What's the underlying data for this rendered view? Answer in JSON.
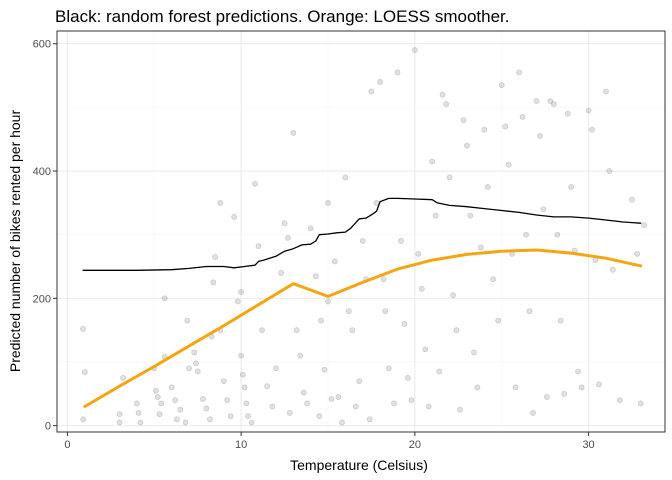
{
  "chart_data": {
    "type": "scatter",
    "title": "Black: random forest predictions. Orange: LOESS smoother.",
    "xlabel": "Temperature (Celsius)",
    "ylabel": "Predicted number of bikes rented per hour",
    "xlim": [
      -0.6,
      34.4
    ],
    "ylim": [
      -10,
      620
    ],
    "xticks": [
      0,
      10,
      20,
      30
    ],
    "yticks": [
      0,
      200,
      400,
      600
    ],
    "grid": true,
    "colors": {
      "points": "#000000",
      "rf_line": "#000000",
      "loess_line": "#f5a511",
      "panel_border": "#333333",
      "grid_major": "#ebebeb",
      "grid_minor": "#f5f5f5"
    },
    "series": [
      {
        "type": "line",
        "color": "#000000",
        "x": [
          0.9,
          4,
          6,
          7,
          8,
          9,
          9.6,
          10.2,
          10.8,
          11,
          11.3,
          12,
          12.5,
          13,
          13.5,
          14,
          14.3,
          14.5,
          15,
          15.5,
          16,
          16.3,
          16.8,
          17.2,
          17.6,
          17.8,
          18,
          18.5,
          19,
          20,
          21,
          21.3,
          22,
          23,
          24,
          25,
          26,
          27,
          28,
          29,
          30,
          31,
          32,
          33
        ],
        "y": [
          244,
          244,
          245,
          247,
          250,
          250,
          248,
          250,
          252,
          258,
          260,
          266,
          274,
          278,
          284,
          285,
          290,
          300,
          301,
          303,
          304,
          310,
          325,
          326,
          333,
          337,
          352,
          357,
          357,
          356,
          355,
          350,
          346,
          344,
          341,
          338,
          335,
          331,
          328,
          328,
          326,
          323,
          320,
          318
        ]
      },
      {
        "type": "line",
        "color": "#f5a511",
        "x": [
          1,
          3,
          5,
          7,
          9,
          11,
          13,
          15,
          17,
          19,
          21,
          23,
          25,
          27,
          29,
          31,
          33
        ],
        "y": [
          30,
          62,
          93,
          125,
          157,
          190,
          223,
          203,
          225,
          246,
          260,
          269,
          274,
          276,
          271,
          263,
          251
        ]
      }
    ],
    "points": [
      [
        0.9,
        152
      ],
      [
        1,
        84
      ],
      [
        0.9,
        10
      ],
      [
        3,
        18
      ],
      [
        3,
        5
      ],
      [
        3.2,
        75
      ],
      [
        4,
        35
      ],
      [
        4.1,
        20
      ],
      [
        4.2,
        5
      ],
      [
        5,
        90
      ],
      [
        5.1,
        55
      ],
      [
        5.2,
        45
      ],
      [
        5.4,
        35
      ],
      [
        5.3,
        18
      ],
      [
        5.6,
        108
      ],
      [
        5.6,
        200
      ],
      [
        6,
        60
      ],
      [
        6.2,
        40
      ],
      [
        6.3,
        10
      ],
      [
        6.5,
        25
      ],
      [
        6.8,
        5
      ],
      [
        6.9,
        165
      ],
      [
        7,
        90
      ],
      [
        7.3,
        115
      ],
      [
        7.4,
        98
      ],
      [
        7.5,
        85
      ],
      [
        7.8,
        42
      ],
      [
        8.0,
        27
      ],
      [
        8.2,
        10
      ],
      [
        8.3,
        140
      ],
      [
        8.4,
        225
      ],
      [
        8.5,
        265
      ],
      [
        8.8,
        350
      ],
      [
        8.8,
        150
      ],
      [
        9.0,
        70
      ],
      [
        9.2,
        40
      ],
      [
        9.4,
        15
      ],
      [
        9.6,
        328
      ],
      [
        9.8,
        195
      ],
      [
        10,
        210
      ],
      [
        10,
        110
      ],
      [
        10.1,
        80
      ],
      [
        10.2,
        60
      ],
      [
        10.3,
        35
      ],
      [
        10.4,
        15
      ],
      [
        10.6,
        5
      ],
      [
        10.8,
        380
      ],
      [
        11,
        282
      ],
      [
        11.2,
        150
      ],
      [
        11.5,
        62
      ],
      [
        11.8,
        30
      ],
      [
        12,
        90
      ],
      [
        12.3,
        240
      ],
      [
        12.5,
        318
      ],
      [
        12.7,
        295
      ],
      [
        12.8,
        20
      ],
      [
        13,
        460
      ],
      [
        13.2,
        150
      ],
      [
        13.4,
        110
      ],
      [
        13.6,
        52
      ],
      [
        13.8,
        35
      ],
      [
        14,
        310
      ],
      [
        14.3,
        235
      ],
      [
        14.5,
        15
      ],
      [
        14.6,
        165
      ],
      [
        14.8,
        88
      ],
      [
        15,
        350
      ],
      [
        15,
        195
      ],
      [
        15.2,
        42
      ],
      [
        15.4,
        258
      ],
      [
        15.6,
        45
      ],
      [
        15.8,
        5
      ],
      [
        16,
        390
      ],
      [
        16.2,
        180
      ],
      [
        16.4,
        150
      ],
      [
        16.6,
        30
      ],
      [
        16.8,
        70
      ],
      [
        17.0,
        290
      ],
      [
        17.2,
        230
      ],
      [
        17.4,
        10
      ],
      [
        17.5,
        525
      ],
      [
        17.8,
        350
      ],
      [
        18,
        540
      ],
      [
        18.2,
        230
      ],
      [
        18.3,
        180
      ],
      [
        18.5,
        90
      ],
      [
        18.8,
        35
      ],
      [
        19,
        555
      ],
      [
        19.2,
        290
      ],
      [
        19.4,
        160
      ],
      [
        19.6,
        75
      ],
      [
        19.8,
        40
      ],
      [
        20,
        590
      ],
      [
        20.2,
        270
      ],
      [
        20.4,
        215
      ],
      [
        20.6,
        120
      ],
      [
        20.8,
        30
      ],
      [
        21,
        415
      ],
      [
        21.2,
        330
      ],
      [
        21.4,
        85
      ],
      [
        21.6,
        520
      ],
      [
        21.8,
        505
      ],
      [
        22,
        390
      ],
      [
        22.2,
        205
      ],
      [
        22.4,
        150
      ],
      [
        22.6,
        25
      ],
      [
        22.8,
        480
      ],
      [
        23,
        440
      ],
      [
        23.2,
        330
      ],
      [
        23.4,
        115
      ],
      [
        23.6,
        60
      ],
      [
        23.8,
        280
      ],
      [
        24,
        465
      ],
      [
        24.2,
        375
      ],
      [
        24.5,
        230
      ],
      [
        24.8,
        165
      ],
      [
        25,
        535
      ],
      [
        25.2,
        470
      ],
      [
        25.4,
        410
      ],
      [
        25.6,
        270
      ],
      [
        25.8,
        60
      ],
      [
        26,
        555
      ],
      [
        26.2,
        485
      ],
      [
        26.4,
        300
      ],
      [
        26.6,
        180
      ],
      [
        26.8,
        20
      ],
      [
        27,
        510
      ],
      [
        27.2,
        455
      ],
      [
        27.4,
        340
      ],
      [
        27.6,
        45
      ],
      [
        27.8,
        510
      ],
      [
        28,
        505
      ],
      [
        28.2,
        300
      ],
      [
        28.4,
        165
      ],
      [
        28.6,
        50
      ],
      [
        28.8,
        490
      ],
      [
        29,
        375
      ],
      [
        29.2,
        275
      ],
      [
        29.4,
        85
      ],
      [
        29.6,
        60
      ],
      [
        30,
        495
      ],
      [
        30.2,
        465
      ],
      [
        30.4,
        260
      ],
      [
        30.6,
        65
      ],
      [
        31,
        525
      ],
      [
        31.2,
        400
      ],
      [
        31.4,
        245
      ],
      [
        31.8,
        40
      ],
      [
        32.5,
        355
      ],
      [
        32.8,
        270
      ],
      [
        33,
        35
      ],
      [
        33.2,
        315
      ]
    ]
  }
}
